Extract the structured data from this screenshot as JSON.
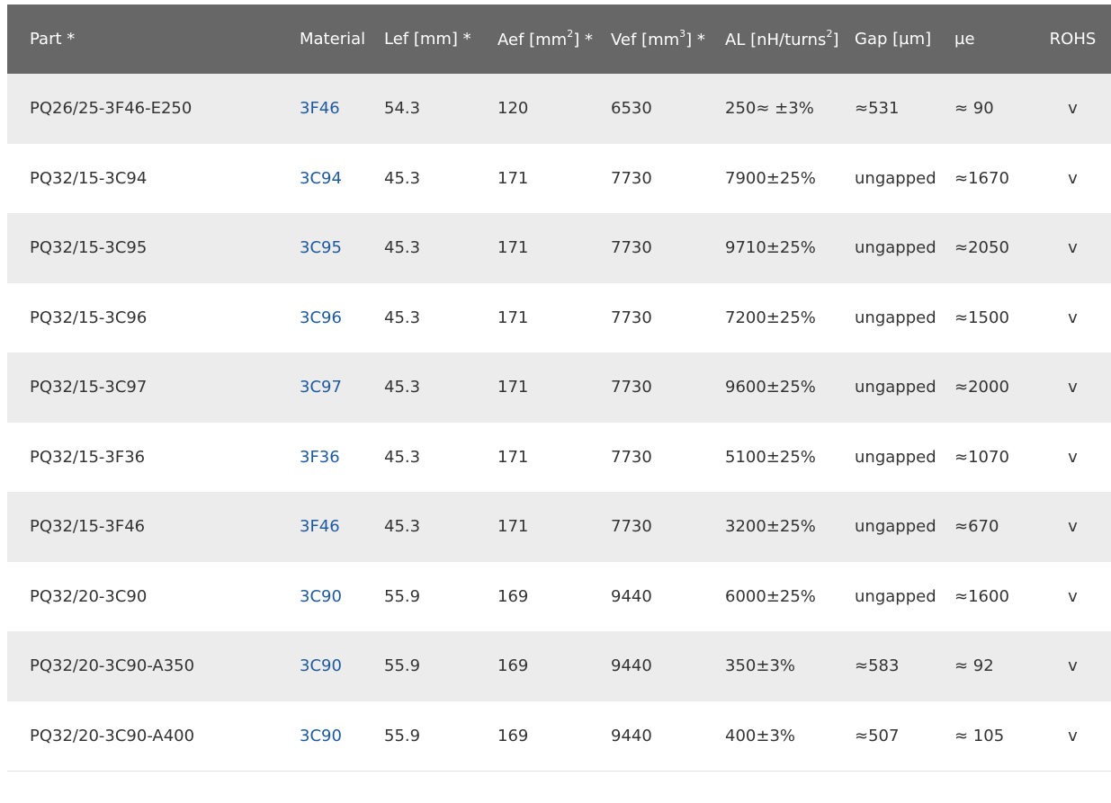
{
  "columns": {
    "part": "Part *",
    "material": "Material",
    "lef": "Lef [mm] *",
    "aef_base": "Aef [mm",
    "aef_sup": "2",
    "aef_tail": "] *",
    "vef_base": "Vef [mm",
    "vef_sup": "3",
    "vef_tail": "] *",
    "al_base": "AL [nH/turns",
    "al_sup": "2",
    "al_tail": "]",
    "gap": "Gap [µm]",
    "mue": "µe",
    "rohs": "ROHS"
  },
  "rows": [
    {
      "part": "PQ26/25-3F46-E250",
      "material": "3F46",
      "lef": "54.3",
      "aef": "120",
      "vef": "6530",
      "al": "250≈ ±3%",
      "gap": "≈531",
      "mue": "≈ 90",
      "rohs": "v"
    },
    {
      "part": "PQ32/15-3C94",
      "material": "3C94",
      "lef": "45.3",
      "aef": "171",
      "vef": "7730",
      "al": "7900±25%",
      "gap": "ungapped",
      "mue": "≈1670",
      "rohs": "v"
    },
    {
      "part": "PQ32/15-3C95",
      "material": "3C95",
      "lef": "45.3",
      "aef": "171",
      "vef": "7730",
      "al": "9710±25%",
      "gap": "ungapped",
      "mue": "≈2050",
      "rohs": "v"
    },
    {
      "part": "PQ32/15-3C96",
      "material": "3C96",
      "lef": "45.3",
      "aef": "171",
      "vef": "7730",
      "al": "7200±25%",
      "gap": "ungapped",
      "mue": "≈1500",
      "rohs": "v"
    },
    {
      "part": "PQ32/15-3C97",
      "material": "3C97",
      "lef": "45.3",
      "aef": "171",
      "vef": "7730",
      "al": "9600±25%",
      "gap": "ungapped",
      "mue": "≈2000",
      "rohs": "v"
    },
    {
      "part": "PQ32/15-3F36",
      "material": "3F36",
      "lef": "45.3",
      "aef": "171",
      "vef": "7730",
      "al": "5100±25%",
      "gap": "ungapped",
      "mue": "≈1070",
      "rohs": "v"
    },
    {
      "part": "PQ32/15-3F46",
      "material": "3F46",
      "lef": "45.3",
      "aef": "171",
      "vef": "7730",
      "al": "3200±25%",
      "gap": "ungapped",
      "mue": "≈670",
      "rohs": "v"
    },
    {
      "part": "PQ32/20-3C90",
      "material": "3C90",
      "lef": "55.9",
      "aef": "169",
      "vef": "9440",
      "al": "6000±25%",
      "gap": "ungapped",
      "mue": "≈1600",
      "rohs": "v"
    },
    {
      "part": "PQ32/20-3C90-A350",
      "material": "3C90",
      "lef": "55.9",
      "aef": "169",
      "vef": "9440",
      "al": "350±3%",
      "gap": "≈583",
      "mue": "≈ 92",
      "rohs": "v"
    },
    {
      "part": "PQ32/20-3C90-A400",
      "material": "3C90",
      "lef": "55.9",
      "aef": "169",
      "vef": "9440",
      "al": "400±3%",
      "gap": "≈507",
      "mue": "≈ 105",
      "rohs": "v"
    }
  ],
  "colors": {
    "header_bg": "#676767",
    "header_text": "#ffffff",
    "row_alt_bg": "#ececec",
    "link": "#1f5aa0",
    "text": "#333333"
  }
}
